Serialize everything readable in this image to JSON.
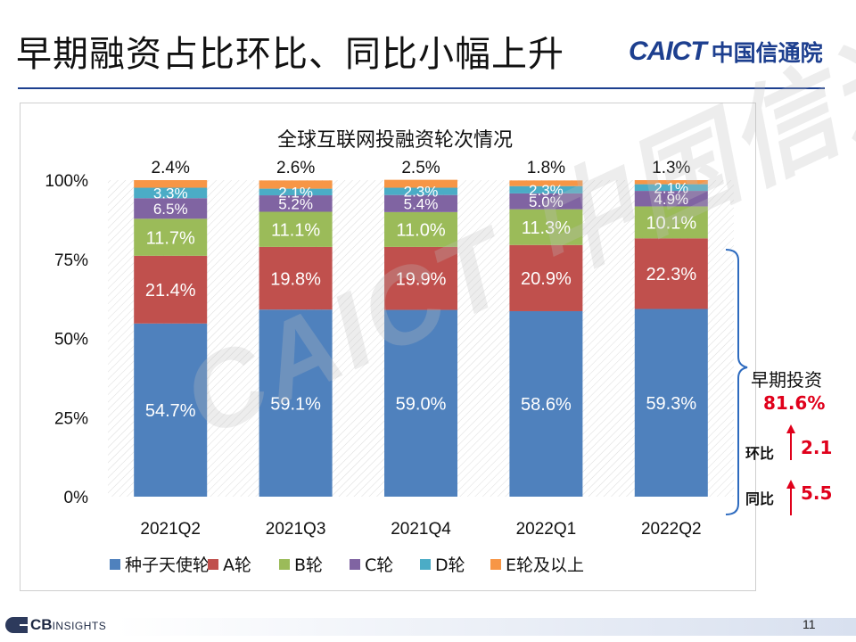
{
  "slide": {
    "title": "早期融资占比环比、同比小幅上升",
    "logo_en": "CAICT",
    "logo_cn": "中国信通院",
    "page_number": "11",
    "footer_logo": {
      "cb": "CB",
      "insights": "INSIGHTS"
    },
    "watermark": "CAICT 中国信通院"
  },
  "side_panel": {
    "label": "早期投资",
    "value": "81.6%",
    "qoq_label": "环比",
    "qoq_value": "2.1",
    "yoy_label": "同比",
    "yoy_value": "5.5"
  },
  "colors": {
    "seed": "#4f81bd",
    "A": "#c0504d",
    "B": "#9bbb59",
    "C": "#8064a2",
    "D": "#4bacc6",
    "E": "#f79646",
    "accent_red": "#e0001b",
    "title_blue": "#1d3f8f"
  },
  "chart_data": {
    "type": "bar",
    "stacked": true,
    "title": "全球互联网投融资轮次情况",
    "categories": [
      "2021Q2",
      "2021Q3",
      "2021Q4",
      "2022Q1",
      "2022Q2"
    ],
    "series": [
      {
        "name": "种子天使轮",
        "values": [
          54.7,
          59.1,
          59.0,
          58.6,
          59.3
        ],
        "labels": [
          "54.7%",
          "59.1%",
          "59.0%",
          "58.6%",
          "59.3%"
        ]
      },
      {
        "name": "A轮",
        "values": [
          21.4,
          19.8,
          19.9,
          20.9,
          22.3
        ],
        "labels": [
          "21.4%",
          "19.8%",
          "19.9%",
          "20.9%",
          "22.3%"
        ]
      },
      {
        "name": "B轮",
        "values": [
          11.7,
          11.1,
          11.0,
          11.3,
          10.1
        ],
        "labels": [
          "11.7%",
          "11.1%",
          "11.0%",
          "11.3%",
          "10.1%"
        ]
      },
      {
        "name": "C轮",
        "values": [
          6.5,
          5.2,
          5.4,
          5.0,
          4.9
        ],
        "labels": [
          "6.5%",
          "5.2%",
          "5.4%",
          "5.0%",
          "4.9%"
        ]
      },
      {
        "name": "D轮",
        "values": [
          3.3,
          2.1,
          2.3,
          2.3,
          2.1
        ],
        "labels": [
          "3.3%",
          "2.1%",
          "2.3%",
          "2.3%",
          "2.1%"
        ]
      },
      {
        "name": "E轮及以上",
        "values": [
          2.4,
          2.6,
          2.5,
          1.8,
          1.3
        ],
        "labels": [
          "2.4%",
          "2.6%",
          "2.5%",
          "1.8%",
          "1.3%"
        ]
      }
    ],
    "y_ticks": [
      "0%",
      "25%",
      "50%",
      "75%",
      "100%"
    ],
    "ylim": [
      0,
      100
    ],
    "legend_position": "bottom",
    "grid": false
  }
}
